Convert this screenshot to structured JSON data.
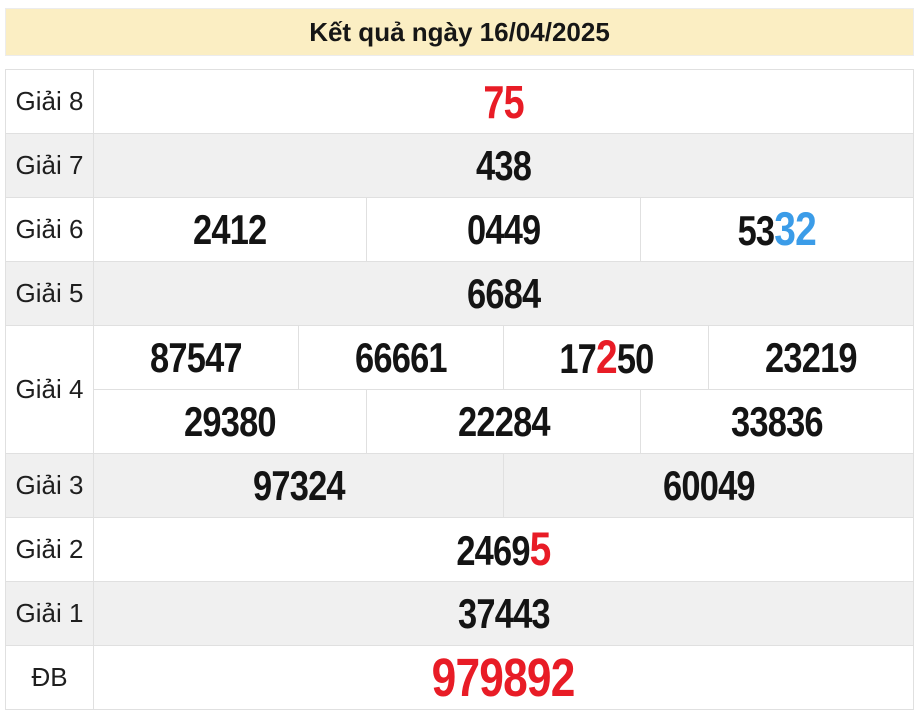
{
  "header": {
    "title": "Kết quả ngày 16/04/2025"
  },
  "colors": {
    "red": "#e81c26",
    "blue": "#3b9ce8",
    "ink": "#141414",
    "header-bg": "#fbeec3",
    "row-alt": "#f0f0f0",
    "border": "#e0e0e0"
  },
  "table": {
    "rows": [
      {
        "label": "Giải 8",
        "cells": [
          {
            "parts": [
              {
                "text": "75",
                "color": "red"
              }
            ]
          }
        ]
      },
      {
        "label": "Giải 7",
        "cells": [
          {
            "parts": [
              {
                "text": "438"
              }
            ]
          }
        ]
      },
      {
        "label": "Giải 6",
        "cells": [
          {
            "parts": [
              {
                "text": "2412"
              }
            ]
          },
          {
            "parts": [
              {
                "text": "0449"
              }
            ]
          },
          {
            "parts": [
              {
                "text": "53"
              },
              {
                "text": "32",
                "color": "blue"
              }
            ]
          }
        ]
      },
      {
        "label": "Giải 5",
        "cells": [
          {
            "parts": [
              {
                "text": "6684"
              }
            ]
          }
        ]
      },
      {
        "label": "Giải 4",
        "cells": [
          {
            "parts": [
              {
                "text": "87547"
              }
            ]
          },
          {
            "parts": [
              {
                "text": "66661"
              }
            ]
          },
          {
            "parts": [
              {
                "text": "17"
              },
              {
                "text": "2",
                "color": "red"
              },
              {
                "text": "50"
              }
            ]
          },
          {
            "parts": [
              {
                "text": "23219"
              }
            ]
          }
        ]
      },
      {
        "label": "",
        "cells": [
          {
            "parts": [
              {
                "text": "29380"
              }
            ]
          },
          {
            "parts": [
              {
                "text": "22284"
              }
            ]
          },
          {
            "parts": [
              {
                "text": "33836"
              }
            ]
          }
        ]
      },
      {
        "label": "Giải 3",
        "cells": [
          {
            "parts": [
              {
                "text": "97324"
              }
            ]
          },
          {
            "parts": [
              {
                "text": "60049"
              }
            ]
          }
        ]
      },
      {
        "label": "Giải 2",
        "cells": [
          {
            "parts": [
              {
                "text": "2469"
              },
              {
                "text": "5",
                "color": "red"
              }
            ]
          }
        ]
      },
      {
        "label": "Giải 1",
        "cells": [
          {
            "parts": [
              {
                "text": "37443"
              }
            ]
          }
        ]
      },
      {
        "label": "ĐB",
        "cells": [
          {
            "parts": [
              {
                "text": "979892",
                "color": "red"
              }
            ]
          }
        ]
      }
    ]
  }
}
